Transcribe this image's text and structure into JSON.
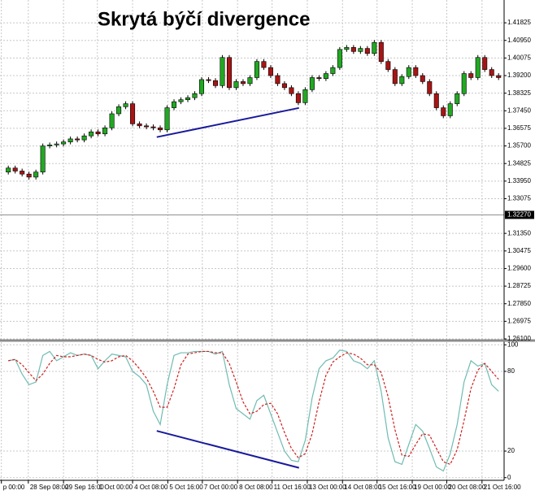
{
  "chart_data": [
    {
      "type": "candlestick",
      "title": "Skrytá býčí divergence",
      "categories": [
        null,
        null,
        null,
        null,
        null,
        null,
        null,
        null,
        null,
        null,
        null,
        null,
        null,
        null,
        null,
        null,
        null,
        null,
        null,
        null,
        null,
        null,
        null,
        null,
        null,
        null,
        null,
        null,
        null,
        null,
        null,
        null,
        null,
        null,
        null,
        null,
        null,
        null,
        null,
        null,
        null,
        null,
        null,
        null,
        null,
        null,
        null,
        null,
        null,
        null,
        null,
        null,
        null,
        null,
        null,
        null,
        null,
        null,
        null,
        null,
        null,
        null,
        null,
        null,
        null,
        null,
        null,
        null,
        null,
        null,
        null,
        null
      ],
      "open": [
        1.344,
        1.346,
        1.3445,
        1.343,
        1.3415,
        1.344,
        1.357,
        1.3575,
        1.358,
        1.359,
        1.3605,
        1.36,
        1.362,
        1.364,
        1.363,
        1.366,
        1.373,
        1.3765,
        1.378,
        1.368,
        1.367,
        1.3665,
        1.366,
        1.365,
        1.376,
        1.379,
        1.38,
        1.381,
        1.383,
        1.39,
        1.3895,
        1.387,
        1.401,
        1.386,
        1.389,
        1.388,
        1.391,
        1.399,
        1.396,
        1.392,
        1.388,
        1.386,
        1.383,
        1.3785,
        1.385,
        1.391,
        1.3905,
        1.393,
        1.396,
        1.405,
        1.406,
        1.404,
        1.4055,
        1.403,
        1.4085,
        1.399,
        1.395,
        1.388,
        1.3915,
        1.396,
        1.392,
        1.389,
        1.383,
        1.376,
        1.372,
        1.378,
        1.383,
        1.393,
        1.391,
        1.401,
        1.395,
        1.392
      ],
      "high": [
        1.3472,
        1.3472,
        1.3457,
        1.3442,
        1.3452,
        1.3582,
        1.3587,
        1.3592,
        1.3602,
        1.3617,
        1.3617,
        1.3632,
        1.3652,
        1.3652,
        1.3672,
        1.3742,
        1.3777,
        1.3792,
        1.3792,
        1.3692,
        1.3682,
        1.3677,
        1.3672,
        1.3772,
        1.3802,
        1.3812,
        1.3822,
        1.3842,
        1.3912,
        1.3912,
        1.3907,
        1.4022,
        1.4022,
        1.3902,
        1.3902,
        1.3922,
        1.4002,
        1.4002,
        1.3972,
        1.3932,
        1.3892,
        1.3872,
        1.3842,
        1.3862,
        1.3922,
        1.3922,
        1.3942,
        1.3972,
        1.4062,
        1.4072,
        1.4072,
        1.4067,
        1.4067,
        1.4097,
        1.4097,
        1.4002,
        1.3962,
        1.3927,
        1.3972,
        1.3972,
        1.3932,
        1.3902,
        1.3842,
        1.3772,
        1.3792,
        1.3842,
        1.3942,
        1.3942,
        1.4022,
        1.4022,
        1.3962,
        1.3932
      ],
      "low": [
        1.3428,
        1.3433,
        1.3418,
        1.3403,
        1.3403,
        1.3428,
        1.3558,
        1.3563,
        1.3568,
        1.3578,
        1.3588,
        1.3588,
        1.3608,
        1.3618,
        1.3618,
        1.3648,
        1.3718,
        1.3753,
        1.3668,
        1.3658,
        1.3653,
        1.3648,
        1.3638,
        1.3638,
        1.3748,
        1.3778,
        1.3788,
        1.3798,
        1.3818,
        1.3883,
        1.3858,
        1.3858,
        1.3848,
        1.3848,
        1.3868,
        1.3868,
        1.3898,
        1.3948,
        1.3908,
        1.3868,
        1.3848,
        1.3818,
        1.3773,
        1.3773,
        1.3838,
        1.3893,
        1.3893,
        1.3918,
        1.3948,
        1.4038,
        1.4028,
        1.4028,
        1.4018,
        1.4018,
        1.3978,
        1.3938,
        1.3868,
        1.3868,
        1.3903,
        1.3908,
        1.3878,
        1.3818,
        1.3748,
        1.3708,
        1.3708,
        1.3768,
        1.3818,
        1.3898,
        1.3898,
        1.3938,
        1.3908,
        1.3898
      ],
      "close": [
        1.346,
        1.3445,
        1.343,
        1.3415,
        1.344,
        1.357,
        1.3575,
        1.358,
        1.359,
        1.3605,
        1.36,
        1.362,
        1.364,
        1.363,
        1.366,
        1.373,
        1.3765,
        1.378,
        1.368,
        1.367,
        1.3665,
        1.366,
        1.365,
        1.376,
        1.379,
        1.38,
        1.381,
        1.383,
        1.39,
        1.3895,
        1.387,
        1.401,
        1.386,
        1.389,
        1.388,
        1.391,
        1.399,
        1.396,
        1.392,
        1.388,
        1.386,
        1.383,
        1.3785,
        1.385,
        1.391,
        1.3905,
        1.393,
        1.396,
        1.405,
        1.406,
        1.404,
        1.4055,
        1.403,
        1.4085,
        1.399,
        1.395,
        1.388,
        1.3915,
        1.396,
        1.392,
        1.389,
        1.383,
        1.376,
        1.372,
        1.378,
        1.383,
        1.393,
        1.391,
        1.401,
        1.395,
        1.392,
        1.391
      ],
      "up_color": "#22a822",
      "down_color": "#a81414",
      "xlim": [
        -1.2,
        71.8
      ],
      "ylim": [
        1.2606,
        1.4296
      ],
      "yticks": [
        {
          "value": 1.261,
          "label": "1.26100"
        },
        1.26975,
        {
          "value": 1.2785,
          "label": "1.27850"
        },
        1.28725,
        {
          "value": 1.296,
          "label": "1.29600"
        },
        1.30475,
        {
          "value": 1.3135,
          "label": "1.31350"
        },
        1.33075,
        {
          "value": 1.3395,
          "label": "1.33950"
        },
        1.34825,
        {
          "value": 1.357,
          "label": "1.35700"
        },
        1.36575,
        {
          "value": 1.3745,
          "label": "1.37450"
        },
        1.38325,
        {
          "value": 1.392,
          "label": "1.39200"
        },
        1.40075,
        {
          "value": 1.4095,
          "label": "1.40950"
        },
        1.41825
      ],
      "price_marker": {
        "value": 1.3227,
        "label": "1.32270"
      },
      "grid": true,
      "trendlines": [
        {
          "x": [
            21.5,
            42.1
          ],
          "values": [
            1.3614,
            1.3759
          ],
          "color": "#1a1a9c"
        }
      ]
    },
    {
      "type": "line",
      "xlim": [
        -1.2,
        71.8
      ],
      "ylim": [
        -2,
        102
      ],
      "yticks": [
        0,
        20,
        80,
        100
      ],
      "grid": true,
      "xticks": [
        {
          "value": -1,
          "label": "p 00:00"
        },
        {
          "value": 2.9,
          "label": "28 Sep 08:00"
        },
        {
          "value": 8.0,
          "label": "29 Sep 16:00"
        },
        {
          "value": 12.9,
          "label": "1 Oct 00:00"
        },
        {
          "value": 18.0,
          "label": "4 Oct 08:00"
        },
        {
          "value": 23.1,
          "label": "5 Oct 16:00"
        },
        {
          "value": 28.1,
          "label": "7 Oct 00:00"
        },
        {
          "value": 33.2,
          "label": "8 Oct 08:00"
        },
        {
          "value": 38.2,
          "label": "11 Oct 16:00"
        },
        {
          "value": 43.3,
          "label": "13 Oct 00:00"
        },
        {
          "value": 48.4,
          "label": "14 Oct 08:00"
        },
        {
          "value": 53.4,
          "label": "15 Oct 16:00"
        },
        {
          "value": 58.5,
          "label": "19 Oct 00:00"
        },
        {
          "value": 63.5,
          "label": "20 Oct 08:00"
        },
        {
          "value": 68.6,
          "label": "21 Oct 16:00"
        }
      ],
      "series": [
        {
          "color": "#6fbcb2",
          "values": [
            88,
            89,
            78,
            70,
            72,
            92,
            95,
            88,
            91,
            94,
            92,
            93,
            92,
            82,
            88,
            93,
            92,
            91,
            80,
            76,
            70,
            50,
            40,
            70,
            92,
            94,
            94,
            95,
            95,
            95,
            93,
            95,
            70,
            52,
            48,
            44,
            58,
            62,
            48,
            34,
            20,
            13,
            12,
            28,
            60,
            82,
            88,
            90,
            96,
            95,
            88,
            86,
            82,
            88,
            65,
            30,
            12,
            10,
            25,
            40,
            35,
            22,
            8,
            5,
            18,
            40,
            72,
            88,
            84,
            86,
            70,
            65
          ]
        },
        {
          "color": "#cc2020",
          "dashed": true,
          "values": [
            88,
            89,
            85,
            79,
            73,
            78,
            86,
            92,
            91,
            91,
            92,
            93,
            92,
            89,
            87,
            88,
            91,
            92,
            88,
            82,
            75,
            65,
            53,
            53,
            67,
            85,
            93,
            94,
            95,
            95,
            94,
            94,
            86,
            72,
            57,
            48,
            50,
            55,
            56,
            48,
            34,
            22,
            15,
            18,
            33,
            57,
            77,
            87,
            91,
            94,
            93,
            90,
            85,
            85,
            79,
            61,
            36,
            17,
            16,
            25,
            33,
            32,
            22,
            12,
            10,
            21,
            43,
            67,
            81,
            86,
            80,
            74
          ]
        }
      ],
      "trendlines": [
        {
          "x": [
            21.5,
            42.1
          ],
          "values": [
            35.2,
            7.4
          ],
          "color": "#1a1a9c"
        }
      ]
    }
  ]
}
